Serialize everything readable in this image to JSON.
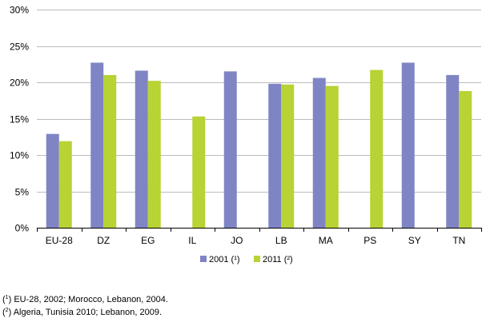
{
  "chart_data": {
    "type": "bar",
    "categories": [
      "EU-28",
      "DZ",
      "EG",
      "IL",
      "JO",
      "LB",
      "MA",
      "PS",
      "SY",
      "TN"
    ],
    "series": [
      {
        "name": "2001 (¹)",
        "marker": "1",
        "color": "#7f85c4",
        "values": [
          12.9,
          22.7,
          21.6,
          null,
          21.5,
          19.8,
          20.6,
          null,
          22.7,
          21.0
        ]
      },
      {
        "name": "2011 (²)",
        "marker": "2",
        "color": "#b7d334",
        "values": [
          11.9,
          21.0,
          20.2,
          15.3,
          null,
          19.7,
          19.5,
          21.7,
          null,
          18.8
        ]
      }
    ],
    "yticks": [
      "0%",
      "5%",
      "10%",
      "15%",
      "20%",
      "25%",
      "30%"
    ],
    "ylim": [
      0,
      30
    ],
    "unit": "%",
    "grid": true,
    "legend_position": "bottom-center"
  },
  "footnotes": [
    {
      "marker": "1",
      "text": "EU-28, 2002; Morocco, Lebanon, 2004."
    },
    {
      "marker": "2",
      "text": "Algeria, Tunisia 2010; Lebanon, 2009."
    }
  ],
  "colors": {
    "gridline": "#bcbcbc",
    "axis": "#000000"
  }
}
